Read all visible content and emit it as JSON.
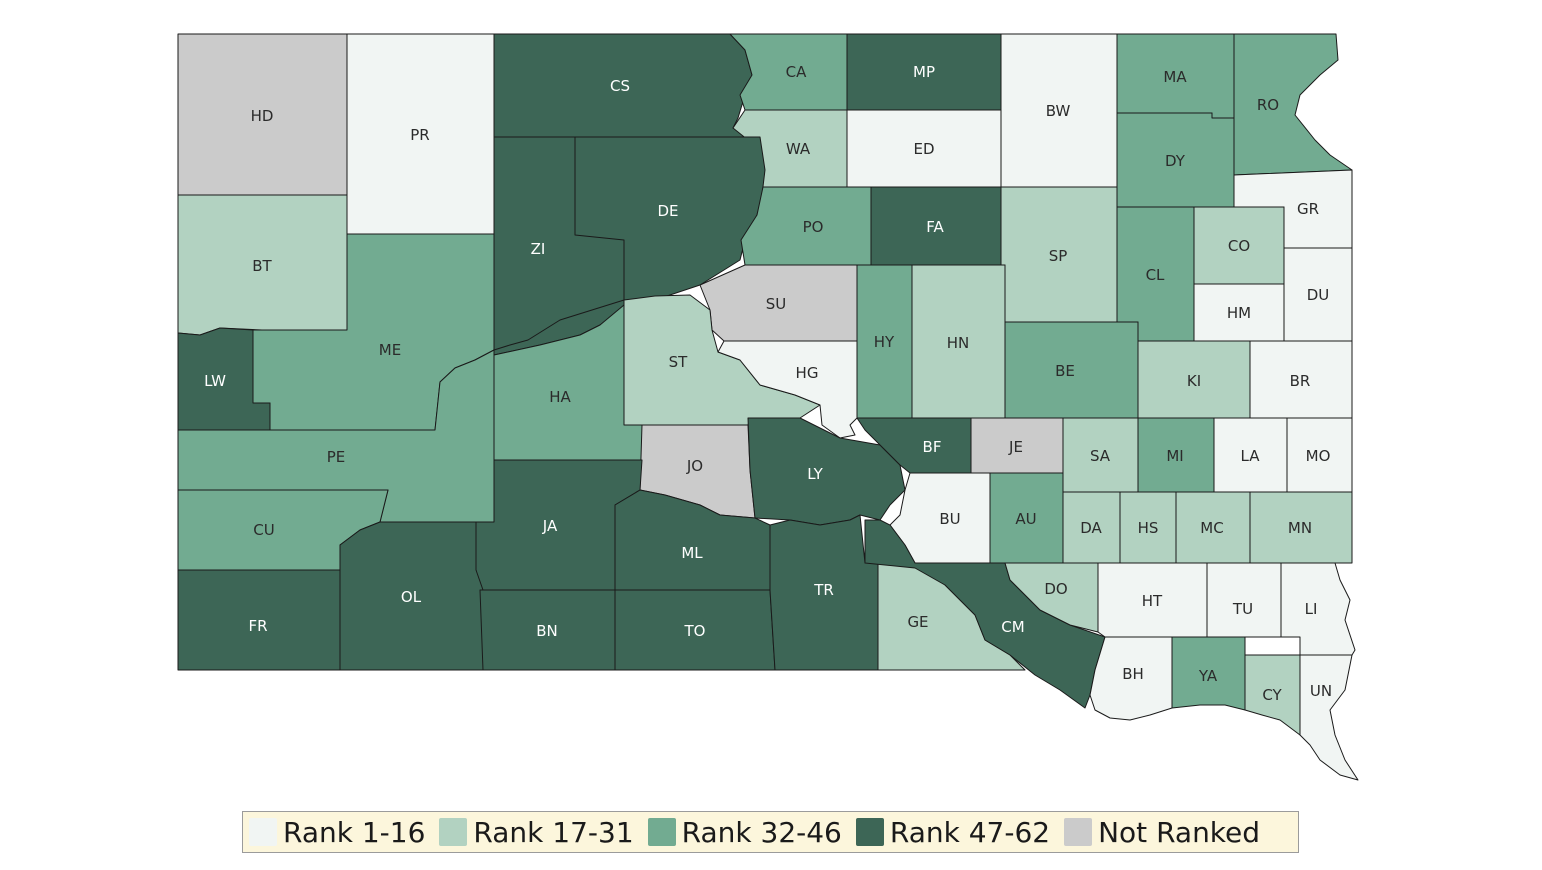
{
  "legend": [
    {
      "key": "r1",
      "label": "Rank 1-16",
      "color": "#f1f5f3"
    },
    {
      "key": "r2",
      "label": "Rank 17-31",
      "color": "#b2d2c1"
    },
    {
      "key": "r3",
      "label": "Rank 32-46",
      "color": "#72ab91"
    },
    {
      "key": "r4",
      "label": "Rank 47-62",
      "color": "#3d6656"
    },
    {
      "key": "nr",
      "label": "Not Ranked",
      "color": "#cbcbcb"
    }
  ],
  "counties": [
    {
      "code": "HD",
      "rank": "nr"
    },
    {
      "code": "PR",
      "rank": "r1"
    },
    {
      "code": "CS",
      "rank": "r4"
    },
    {
      "code": "CA",
      "rank": "r3"
    },
    {
      "code": "MP",
      "rank": "r4"
    },
    {
      "code": "BW",
      "rank": "r1"
    },
    {
      "code": "MA",
      "rank": "r3"
    },
    {
      "code": "RO",
      "rank": "r3"
    },
    {
      "code": "WA",
      "rank": "r2"
    },
    {
      "code": "ED",
      "rank": "r1"
    },
    {
      "code": "DY",
      "rank": "r3"
    },
    {
      "code": "GR",
      "rank": "r1"
    },
    {
      "code": "BT",
      "rank": "r2"
    },
    {
      "code": "DE",
      "rank": "r4"
    },
    {
      "code": "ZI",
      "rank": "r4"
    },
    {
      "code": "PO",
      "rank": "r3"
    },
    {
      "code": "FA",
      "rank": "r4"
    },
    {
      "code": "SP",
      "rank": "r2"
    },
    {
      "code": "CL",
      "rank": "r3"
    },
    {
      "code": "CO",
      "rank": "r2"
    },
    {
      "code": "DU",
      "rank": "r1"
    },
    {
      "code": "HM",
      "rank": "r1"
    },
    {
      "code": "SU",
      "rank": "nr"
    },
    {
      "code": "ME",
      "rank": "r3"
    },
    {
      "code": "LW",
      "rank": "r4"
    },
    {
      "code": "HY",
      "rank": "r3"
    },
    {
      "code": "HN",
      "rank": "r2"
    },
    {
      "code": "ST",
      "rank": "r2"
    },
    {
      "code": "HG",
      "rank": "r1"
    },
    {
      "code": "BE",
      "rank": "r3"
    },
    {
      "code": "KI",
      "rank": "r2"
    },
    {
      "code": "BR",
      "rank": "r1"
    },
    {
      "code": "HA",
      "rank": "r3"
    },
    {
      "code": "PE",
      "rank": "r3"
    },
    {
      "code": "JO",
      "rank": "nr"
    },
    {
      "code": "LY",
      "rank": "r4"
    },
    {
      "code": "BF",
      "rank": "r4"
    },
    {
      "code": "JE",
      "rank": "nr"
    },
    {
      "code": "SA",
      "rank": "r2"
    },
    {
      "code": "MI",
      "rank": "r3"
    },
    {
      "code": "LA",
      "rank": "r1"
    },
    {
      "code": "MO",
      "rank": "r1"
    },
    {
      "code": "CU",
      "rank": "r3"
    },
    {
      "code": "JA",
      "rank": "r4"
    },
    {
      "code": "ML",
      "rank": "r4"
    },
    {
      "code": "BU",
      "rank": "r1"
    },
    {
      "code": "AU",
      "rank": "r3"
    },
    {
      "code": "DA",
      "rank": "r2"
    },
    {
      "code": "HS",
      "rank": "r2"
    },
    {
      "code": "MC",
      "rank": "r2"
    },
    {
      "code": "MN",
      "rank": "r2"
    },
    {
      "code": "FR",
      "rank": "r4"
    },
    {
      "code": "OL",
      "rank": "r4"
    },
    {
      "code": "BN",
      "rank": "r4"
    },
    {
      "code": "TO",
      "rank": "r4"
    },
    {
      "code": "TR",
      "rank": "r4"
    },
    {
      "code": "GE",
      "rank": "r2"
    },
    {
      "code": "CM",
      "rank": "r4"
    },
    {
      "code": "DO",
      "rank": "r2"
    },
    {
      "code": "HT",
      "rank": "r1"
    },
    {
      "code": "TU",
      "rank": "r1"
    },
    {
      "code": "LI",
      "rank": "r1"
    },
    {
      "code": "BH",
      "rank": "r1"
    },
    {
      "code": "YA",
      "rank": "r3"
    },
    {
      "code": "CY",
      "rank": "r2"
    },
    {
      "code": "UN",
      "rank": "r1"
    }
  ]
}
